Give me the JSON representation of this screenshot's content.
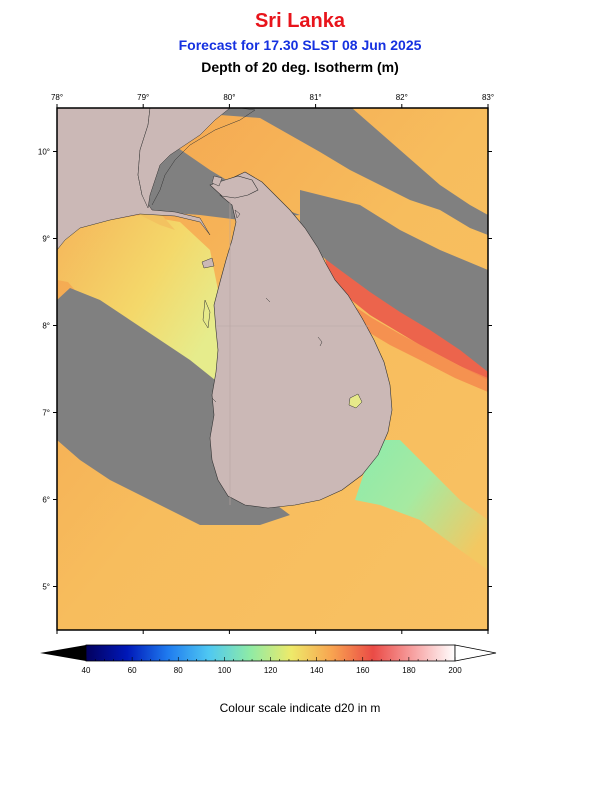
{
  "header": {
    "title": "Sri Lanka",
    "subtitle": "Forecast for  17.30 SLST 08 Jun 2025",
    "variable": "Depth of 20 deg. Isotherm (m)"
  },
  "map": {
    "lon_ticks": [
      "78°",
      "79°",
      "80°",
      "81°",
      "82°",
      "83°"
    ],
    "lat_ticks": [
      "10°",
      "9°",
      "8°",
      "7°",
      "6°",
      "5°"
    ],
    "lon_range": [
      78,
      83
    ],
    "lat_range": [
      4.5,
      10.5
    ],
    "colors": {
      "land": "#cbb8b6",
      "no_data": "#808080",
      "orange": "#f7b156",
      "yellow": "#f6dc6a",
      "pale_yellow": "#e9e98a",
      "red": "#ea4b46",
      "green": "#7fe6a6"
    }
  },
  "colorbar": {
    "ticks": [
      "40",
      "60",
      "80",
      "100",
      "120",
      "140",
      "160",
      "180",
      "200"
    ],
    "stops": [
      "#03005e",
      "#0018b8",
      "#1f7bef",
      "#4fc8f2",
      "#8eeba6",
      "#eeea6a",
      "#f8a350",
      "#ea4b46",
      "#f7a3a3",
      "#ffffff"
    ],
    "caption": "Colour scale indicate d20 in m"
  }
}
